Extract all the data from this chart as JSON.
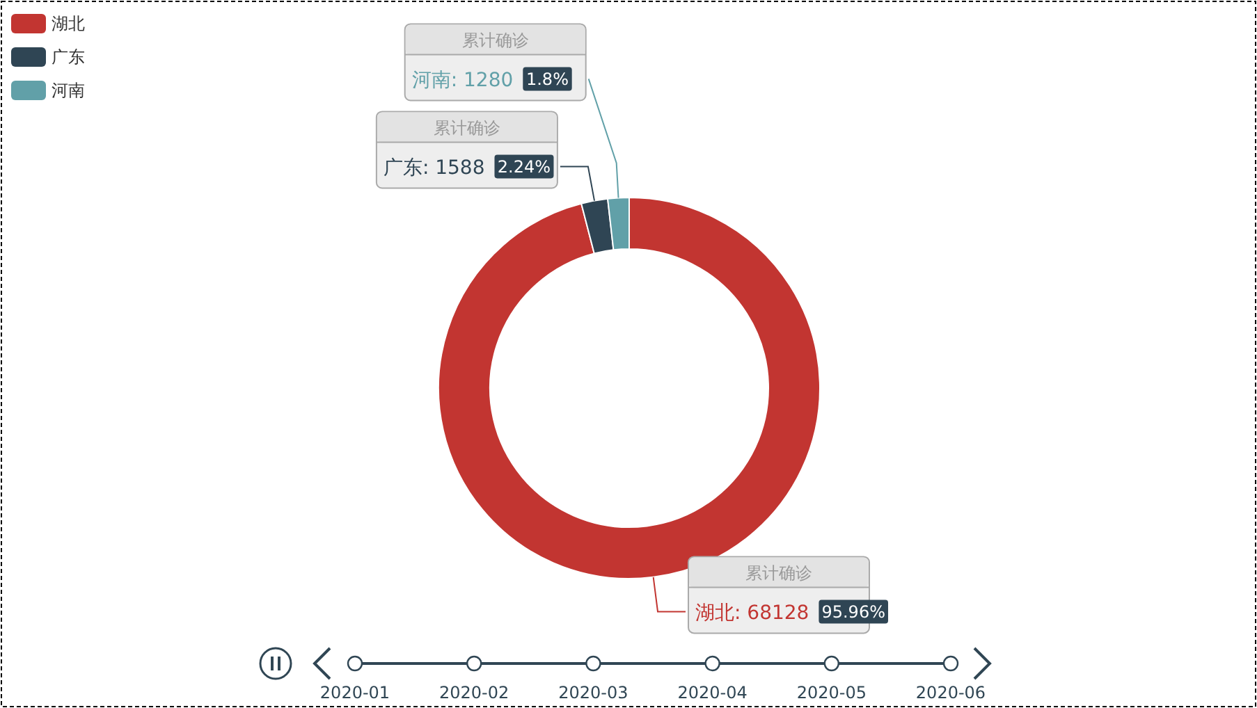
{
  "chart_data": {
    "type": "donut",
    "categories": [
      "湖北",
      "广东",
      "河南"
    ],
    "values": [
      95.96,
      2.24,
      1.8
    ],
    "colors": [
      "#c23531",
      "#2f4554",
      "#61a0a8"
    ],
    "value_labels": [
      "95.96%",
      "2.24%",
      "1.8%"
    ],
    "legend": "top left",
    "annotations": [
      "累计确诊",
      "累计确诊",
      "累计确诊",
      {
        "text": "湖北: 68128",
        "x": "湖北"
      },
      {
        "text": "广东: 1588",
        "x": "广东"
      },
      {
        "text": "河南: 1280",
        "x": "河南"
      },
      "2020-01",
      "2020-02",
      "2020-03",
      "2020-04",
      "2020-05",
      "2020-06"
    ]
  }
}
